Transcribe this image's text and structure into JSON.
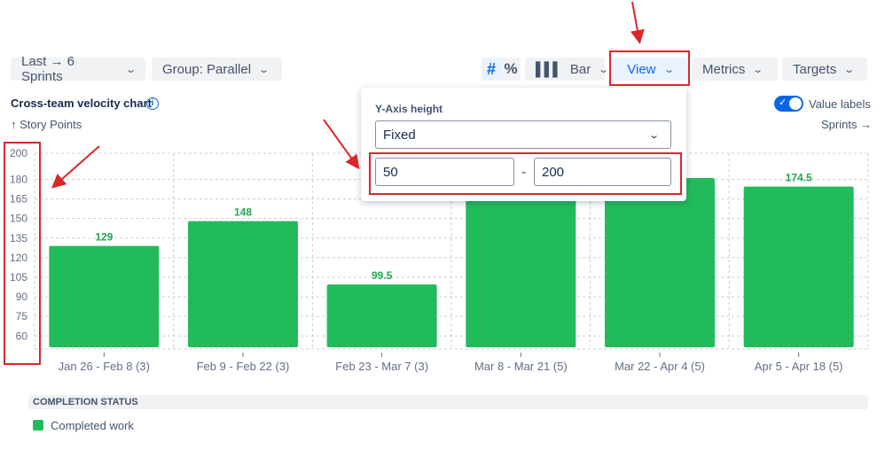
{
  "toolbar": {
    "range": "Last → 6 Sprints",
    "group": "Group: Parallel",
    "count_mode": "#",
    "percent_mode": "%",
    "chart_type": "Bar",
    "view": "View",
    "metrics": "Metrics",
    "targets": "Targets"
  },
  "header": {
    "title": "Cross-team velocity chart",
    "y_axis_label": "↑ Story Points",
    "x_axis_label": "Sprints →",
    "value_labels_toggle": "Value labels",
    "value_labels_on": true
  },
  "popover": {
    "title": "Y-Axis height",
    "mode": "Fixed",
    "min": "50",
    "separator": "-",
    "max": "200"
  },
  "legend": {
    "heading": "COMPLETION STATUS",
    "items": [
      {
        "label": "Completed work",
        "color": "#22bb5b"
      }
    ]
  },
  "colors": {
    "accent": "#0c66e4",
    "bar": "#22bb5b",
    "annotation": "#d9262b"
  },
  "chart_data": {
    "type": "bar",
    "categories": [
      "Jan 26 - Feb 8 (3)",
      "Feb 9 - Feb 22 (3)",
      "Feb 23 - Mar 7 (3)",
      "Mar 8 - Mar 21 (5)",
      "Mar 22 - Apr 4 (5)",
      "Apr 5 - Apr 18 (5)"
    ],
    "values": [
      129,
      148,
      99.5,
      null,
      null,
      174.5
    ],
    "estimated_hidden_values": [
      null,
      null,
      null,
      165,
      181,
      null
    ],
    "yticks": [
      200,
      180,
      165,
      150,
      135,
      120,
      105,
      90,
      75,
      60
    ],
    "ylim": [
      50,
      200
    ],
    "grid": true,
    "ylabel": "↑ Story Points",
    "xlabel": "Sprints →"
  }
}
